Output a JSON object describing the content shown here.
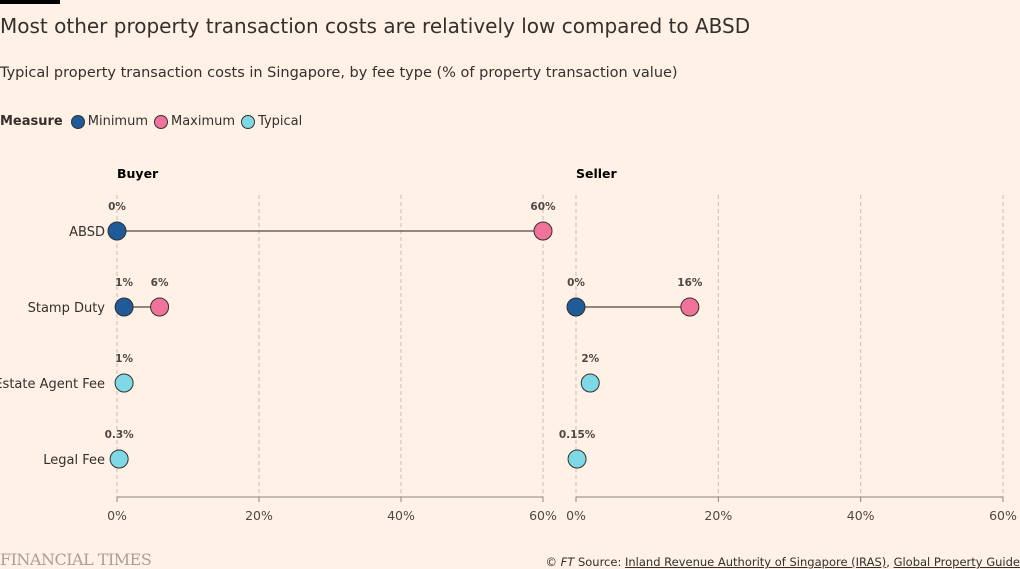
{
  "header": {
    "title": "Most other property transaction costs are relatively low compared to ABSD",
    "subtitle": "Typical property transaction costs in Singapore, by fee type (% of property transaction value)"
  },
  "legend": {
    "label": "Measure",
    "items": [
      {
        "name": "Minimum",
        "color": "#1f5a99"
      },
      {
        "name": "Maximum",
        "color": "#f1729a"
      },
      {
        "name": "Typical",
        "color": "#7fd8e6"
      }
    ]
  },
  "chart_data": {
    "type": "dot-range",
    "categories": [
      "ABSD",
      "Stamp Duty",
      "Estate Agent Fee",
      "Legal Fee"
    ],
    "xlim": [
      0,
      60
    ],
    "ticks": [
      0,
      20,
      40,
      60
    ],
    "tick_labels": [
      "0%",
      "20%",
      "40%",
      "60%"
    ],
    "grid": true,
    "panels": [
      {
        "name": "Buyer",
        "rows": [
          {
            "category": "ABSD",
            "min": 0,
            "max": 60,
            "min_label": "0%",
            "max_label": "60%"
          },
          {
            "category": "Stamp Duty",
            "min": 1,
            "max": 6,
            "min_label": "1%",
            "max_label": "6%"
          },
          {
            "category": "Estate Agent Fee",
            "typical": 1,
            "typical_label": "1%"
          },
          {
            "category": "Legal Fee",
            "typical": 0.3,
            "typical_label": "0.3%"
          }
        ]
      },
      {
        "name": "Seller",
        "rows": [
          {
            "category": "ABSD"
          },
          {
            "category": "Stamp Duty",
            "min": 0,
            "max": 16,
            "min_label": "0%",
            "max_label": "16%"
          },
          {
            "category": "Estate Agent Fee",
            "typical": 2,
            "typical_label": "2%"
          },
          {
            "category": "Legal Fee",
            "typical": 0.15,
            "typical_label": "0.15%"
          }
        ]
      }
    ]
  },
  "footer": {
    "logo": "FINANCIAL TIMES",
    "copyright": "© ",
    "ft": "FT",
    "source_prefix": " Source: ",
    "source1": "Inland Revenue Authority of Singapore (IRAS)",
    "sep": ", ",
    "source2": "Global Property Guide"
  }
}
